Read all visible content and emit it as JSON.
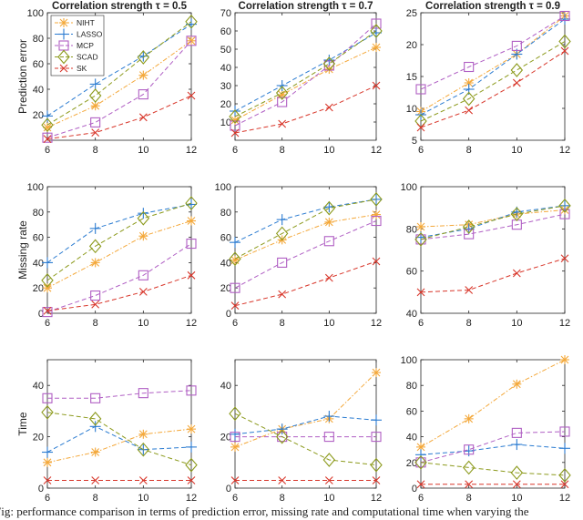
{
  "caption": "Fig: performance comparison in terms of prediction error, missing rate and computational time when varying the",
  "colors": {
    "NIHT": "#f4a83a",
    "LASSO": "#2a7bd1",
    "MCP": "#b05fc4",
    "SCAD": "#8c9a1c",
    "SK": "#d8362a"
  },
  "legend": {
    "entries": [
      {
        "name": "NIHT",
        "marker": "asterisk"
      },
      {
        "name": "LASSO",
        "marker": "plus"
      },
      {
        "name": "MCP",
        "marker": "square"
      },
      {
        "name": "SCAD",
        "marker": "diamond"
      },
      {
        "name": "SK",
        "marker": "cross"
      }
    ],
    "placement": "top-left of first panel"
  },
  "chart_data": [
    {
      "type": "line",
      "row": 0,
      "col": 0,
      "title": "Correlation strength τ = 0.5",
      "ylabel": "Prediction error",
      "xlabel": "",
      "x": [
        6,
        8,
        10,
        12
      ],
      "xticks": [
        "6",
        "8",
        "10",
        "12"
      ],
      "ylim": [
        0,
        100
      ],
      "yticks": [
        "20",
        "40",
        "60",
        "80",
        "100"
      ],
      "ytick_values": [
        20,
        40,
        60,
        80,
        100
      ],
      "series": [
        {
          "name": "NIHT",
          "values": [
            10,
            27,
            51,
            78
          ]
        },
        {
          "name": "LASSO",
          "values": [
            19,
            44,
            66,
            91
          ]
        },
        {
          "name": "MCP",
          "values": [
            2,
            14,
            36,
            78
          ]
        },
        {
          "name": "SCAD",
          "values": [
            12,
            35,
            65,
            93
          ]
        },
        {
          "name": "SK",
          "values": [
            1,
            6,
            18,
            35
          ]
        }
      ]
    },
    {
      "type": "line",
      "row": 0,
      "col": 1,
      "title": "Correlation strength τ = 0.7",
      "ylabel": "",
      "xlabel": "",
      "x": [
        6,
        8,
        10,
        12
      ],
      "xticks": [
        "6",
        "8",
        "10",
        "12"
      ],
      "ylim": [
        0,
        70
      ],
      "yticks": [
        "10",
        "20",
        "30",
        "40",
        "50",
        "60",
        "70"
      ],
      "ytick_values": [
        10,
        20,
        30,
        40,
        50,
        60,
        70
      ],
      "series": [
        {
          "name": "NIHT",
          "values": [
            11,
            25,
            39,
            51
          ]
        },
        {
          "name": "LASSO",
          "values": [
            16,
            30,
            44,
            59
          ]
        },
        {
          "name": "MCP",
          "values": [
            8,
            21,
            41,
            64
          ]
        },
        {
          "name": "SCAD",
          "values": [
            13,
            26,
            42,
            60
          ]
        },
        {
          "name": "SK",
          "values": [
            4,
            9,
            18,
            30
          ]
        }
      ]
    },
    {
      "type": "line",
      "row": 0,
      "col": 2,
      "title": "Correlation strength τ = 0.9",
      "ylabel": "",
      "xlabel": "",
      "x": [
        6,
        8,
        10,
        12
      ],
      "xticks": [
        "6",
        "8",
        "10",
        "12"
      ],
      "ylim": [
        5,
        25
      ],
      "yticks": [
        "5",
        "10",
        "15",
        "20",
        "25"
      ],
      "ytick_values": [
        5,
        10,
        15,
        20,
        25
      ],
      "series": [
        {
          "name": "NIHT",
          "values": [
            9.5,
            14,
            18.5,
            24.5
          ]
        },
        {
          "name": "LASSO",
          "values": [
            9,
            13,
            18.5,
            24
          ]
        },
        {
          "name": "MCP",
          "values": [
            13,
            16.5,
            19.8,
            24.5
          ]
        },
        {
          "name": "SCAD",
          "values": [
            8,
            11.5,
            16,
            20.5
          ]
        },
        {
          "name": "SK",
          "values": [
            7,
            9.7,
            14,
            19
          ]
        }
      ]
    },
    {
      "type": "line",
      "row": 1,
      "col": 0,
      "title": "",
      "ylabel": "Missing rate",
      "xlabel": "",
      "x": [
        6,
        8,
        10,
        12
      ],
      "xticks": [
        "6",
        "8",
        "10",
        "12"
      ],
      "ylim": [
        0,
        100
      ],
      "yticks": [
        "0",
        "20",
        "40",
        "60",
        "80",
        "100"
      ],
      "ytick_values": [
        0,
        20,
        40,
        60,
        80,
        100
      ],
      "series": [
        {
          "name": "NIHT",
          "values": [
            20,
            40,
            61,
            73
          ]
        },
        {
          "name": "LASSO",
          "values": [
            40,
            67,
            79,
            86
          ]
        },
        {
          "name": "MCP",
          "values": [
            1,
            14,
            30,
            55
          ]
        },
        {
          "name": "SCAD",
          "values": [
            26,
            53,
            75,
            87
          ]
        },
        {
          "name": "SK",
          "values": [
            2,
            7,
            17,
            30
          ]
        }
      ]
    },
    {
      "type": "line",
      "row": 1,
      "col": 1,
      "title": "",
      "ylabel": "",
      "xlabel": "",
      "x": [
        6,
        8,
        10,
        12
      ],
      "xticks": [
        "6",
        "8",
        "10",
        "12"
      ],
      "ylim": [
        0,
        100
      ],
      "yticks": [
        "0",
        "20",
        "40",
        "60",
        "80",
        "100"
      ],
      "ytick_values": [
        0,
        20,
        40,
        60,
        80,
        100
      ],
      "series": [
        {
          "name": "NIHT",
          "values": [
            42,
            58,
            72,
            78
          ]
        },
        {
          "name": "LASSO",
          "values": [
            56,
            74,
            84,
            90
          ]
        },
        {
          "name": "MCP",
          "values": [
            20,
            40,
            57,
            73
          ]
        },
        {
          "name": "SCAD",
          "values": [
            43,
            63,
            83,
            90
          ]
        },
        {
          "name": "SK",
          "values": [
            6,
            15,
            28,
            41
          ]
        }
      ]
    },
    {
      "type": "line",
      "row": 1,
      "col": 2,
      "title": "",
      "ylabel": "",
      "xlabel": "",
      "x": [
        6,
        8,
        10,
        12
      ],
      "xticks": [
        "6",
        "8",
        "10",
        "12"
      ],
      "ylim": [
        40,
        100
      ],
      "yticks": [
        "40",
        "60",
        "80",
        "100"
      ],
      "ytick_values": [
        40,
        60,
        80,
        100
      ],
      "series": [
        {
          "name": "NIHT",
          "values": [
            81,
            82,
            87,
            89
          ]
        },
        {
          "name": "LASSO",
          "values": [
            76,
            80,
            88,
            91
          ]
        },
        {
          "name": "MCP",
          "values": [
            75,
            77.5,
            82,
            87
          ]
        },
        {
          "name": "SCAD",
          "values": [
            75,
            81,
            87,
            91
          ]
        },
        {
          "name": "SK",
          "values": [
            50,
            51,
            59,
            66
          ]
        }
      ]
    },
    {
      "type": "line",
      "row": 2,
      "col": 0,
      "title": "",
      "ylabel": "Time",
      "xlabel": "",
      "x": [
        6,
        8,
        10,
        12
      ],
      "xticks": [
        "6",
        "8",
        "10",
        "12"
      ],
      "ylim": [
        0,
        50
      ],
      "yticks": [
        "0",
        "20",
        "40"
      ],
      "ytick_values": [
        0,
        20,
        40
      ],
      "series": [
        {
          "name": "NIHT",
          "values": [
            10,
            14,
            21,
            23
          ]
        },
        {
          "name": "LASSO",
          "values": [
            14,
            24,
            15,
            16
          ]
        },
        {
          "name": "MCP",
          "values": [
            35,
            35,
            37,
            38
          ]
        },
        {
          "name": "SCAD",
          "values": [
            29.5,
            27,
            15,
            9
          ]
        },
        {
          "name": "SK",
          "values": [
            3,
            3,
            3,
            3
          ]
        }
      ]
    },
    {
      "type": "line",
      "row": 2,
      "col": 1,
      "title": "",
      "ylabel": "",
      "xlabel": "",
      "x": [
        6,
        8,
        10,
        12
      ],
      "xticks": [
        "6",
        "8",
        "10",
        "12"
      ],
      "ylim": [
        0,
        50
      ],
      "yticks": [
        "0",
        "20",
        "40"
      ],
      "ytick_values": [
        0,
        20,
        40
      ],
      "series": [
        {
          "name": "NIHT",
          "values": [
            16,
            23,
            27,
            45
          ]
        },
        {
          "name": "LASSO",
          "values": [
            21,
            23,
            28,
            26.5
          ]
        },
        {
          "name": "MCP",
          "values": [
            20,
            20,
            20,
            20
          ]
        },
        {
          "name": "SCAD",
          "values": [
            29,
            20,
            11,
            9
          ]
        },
        {
          "name": "SK",
          "values": [
            3,
            3,
            3,
            3
          ]
        }
      ]
    },
    {
      "type": "line",
      "row": 2,
      "col": 2,
      "title": "",
      "ylabel": "",
      "xlabel": "",
      "x": [
        6,
        8,
        10,
        12
      ],
      "xticks": [
        "6",
        "8",
        "10",
        "12"
      ],
      "ylim": [
        0,
        100
      ],
      "yticks": [
        "0",
        "20",
        "40",
        "60",
        "80",
        "100"
      ],
      "ytick_values": [
        0,
        20,
        40,
        60,
        80,
        100
      ],
      "series": [
        {
          "name": "NIHT",
          "values": [
            32,
            54,
            81,
            100
          ]
        },
        {
          "name": "LASSO",
          "values": [
            26,
            29,
            34,
            31
          ]
        },
        {
          "name": "MCP",
          "values": [
            20,
            30,
            43,
            44
          ]
        },
        {
          "name": "SCAD",
          "values": [
            20,
            16,
            12,
            10
          ]
        },
        {
          "name": "SK",
          "values": [
            3,
            3,
            3,
            3
          ]
        }
      ]
    }
  ]
}
